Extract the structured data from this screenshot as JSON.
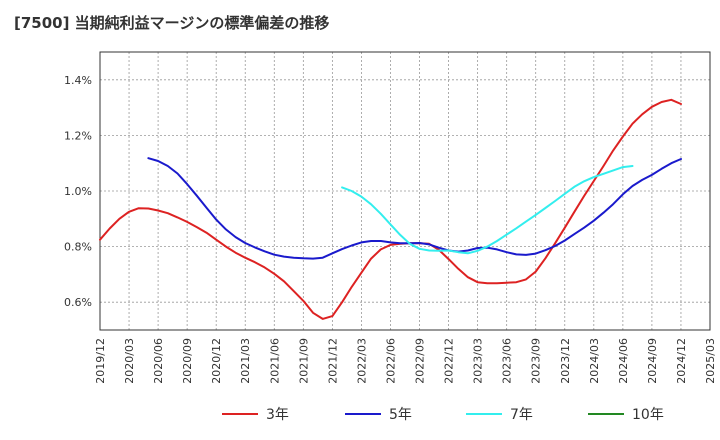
{
  "chart_data": {
    "type": "line",
    "title": "[7500]  当期純利益マージンの標準偏差の推移",
    "xlabel": "",
    "ylabel": "",
    "ylim": [
      0.5,
      1.5
    ],
    "y_ticks": [
      "0.6%",
      "0.8%",
      "1.0%",
      "1.2%",
      "1.4%"
    ],
    "y_tick_values": [
      0.6,
      0.8,
      1.0,
      1.2,
      1.4
    ],
    "x_ticks": [
      "2019/12",
      "2020/03",
      "2020/06",
      "2020/09",
      "2020/12",
      "2021/03",
      "2021/06",
      "2021/09",
      "2021/12",
      "2022/03",
      "2022/06",
      "2022/09",
      "2022/12",
      "2023/03",
      "2023/06",
      "2023/09",
      "2023/12",
      "2024/03",
      "2024/06",
      "2024/09",
      "2024/12",
      "2025/03"
    ],
    "grid": true,
    "legend_position": "bottom",
    "series": [
      {
        "name": "3年",
        "color": "#dd2222",
        "start_index": 0,
        "values": [
          0.825,
          0.865,
          0.9,
          0.925,
          0.938,
          0.937,
          0.93,
          0.92,
          0.905,
          0.889,
          0.87,
          0.85,
          0.825,
          0.8,
          0.778,
          0.76,
          0.744,
          0.725,
          0.702,
          0.675,
          0.64,
          0.605,
          0.562,
          0.54,
          0.55,
          0.6,
          0.655,
          0.706,
          0.757,
          0.79,
          0.806,
          0.81,
          0.812,
          0.812,
          0.81,
          0.788,
          0.755,
          0.72,
          0.69,
          0.672,
          0.668,
          0.668,
          0.67,
          0.672,
          0.682,
          0.71,
          0.758,
          0.812,
          0.868,
          0.925,
          0.982,
          1.036,
          1.09,
          1.146,
          1.196,
          1.242,
          1.276,
          1.303,
          1.32,
          1.328,
          1.313
        ]
      },
      {
        "name": "5年",
        "color": "#1a1acc",
        "start_index": 5,
        "values": [
          1.118,
          1.108,
          1.09,
          1.063,
          1.025,
          0.983,
          0.94,
          0.897,
          0.862,
          0.834,
          0.813,
          0.797,
          0.783,
          0.771,
          0.764,
          0.76,
          0.758,
          0.757,
          0.76,
          0.776,
          0.791,
          0.804,
          0.815,
          0.82,
          0.82,
          0.815,
          0.812,
          0.812,
          0.813,
          0.808,
          0.796,
          0.786,
          0.782,
          0.786,
          0.795,
          0.796,
          0.79,
          0.78,
          0.772,
          0.77,
          0.775,
          0.787,
          0.802,
          0.822,
          0.845,
          0.868,
          0.893,
          0.922,
          0.953,
          0.988,
          1.018,
          1.04,
          1.058,
          1.08,
          1.1,
          1.115
        ]
      },
      {
        "name": "7年",
        "color": "#33eeee",
        "start_index": 25,
        "values": [
          1.013,
          1.0,
          0.98,
          0.952,
          0.918,
          0.88,
          0.842,
          0.81,
          0.792,
          0.786,
          0.785,
          0.786,
          0.78,
          0.776,
          0.785,
          0.8,
          0.82,
          0.843,
          0.866,
          0.89,
          0.914,
          0.939,
          0.964,
          0.99,
          1.015,
          1.035,
          1.05,
          1.062,
          1.074,
          1.086,
          1.09
        ]
      },
      {
        "name": "10年",
        "color": "#228822",
        "start_index": 0,
        "values": []
      }
    ]
  }
}
